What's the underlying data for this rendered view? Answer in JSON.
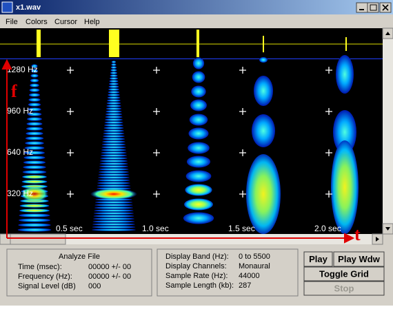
{
  "window": {
    "title": "x1.wav"
  },
  "menu": [
    "File",
    "Colors",
    "Cursor",
    "Help"
  ],
  "spectrogram": {
    "freq_labels": [
      "1280 Hz",
      "960 Hz",
      "640 Hz",
      "320 Hz"
    ],
    "time_labels": [
      "0.5 sec",
      "1.0 sec",
      "1.5 sec",
      "2.0 sec"
    ],
    "axis_annotations": [
      "f",
      "t"
    ]
  },
  "analyze": {
    "title": "Analyze File",
    "rows": [
      [
        "Time (msec):",
        "00000 +/- 00"
      ],
      [
        "Frequency (Hz):",
        "00000 +/- 00"
      ],
      [
        "Signal Level (dB)",
        "000"
      ]
    ]
  },
  "display": {
    "rows": [
      [
        "Display Band (Hz):",
        "0 to 5500"
      ],
      [
        "Display Channels:",
        "Monaural"
      ],
      [
        "Sample Rate (Hz):",
        "44000"
      ],
      [
        "Sample Length (kb):",
        "287"
      ]
    ]
  },
  "buttons": [
    "Play",
    "Play Wdw",
    "Toggle Grid",
    "Stop"
  ]
}
